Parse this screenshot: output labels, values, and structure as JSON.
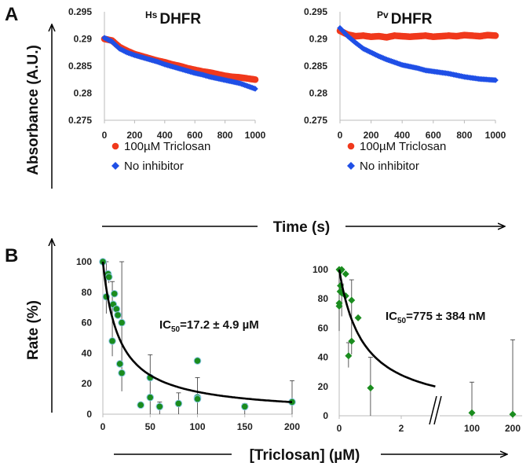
{
  "panel_labels": {
    "a": "A",
    "b": "B"
  },
  "axis_titles": {
    "absorbance": "Absorbance (A.U.)",
    "time": "Time (s)",
    "rate": "Rate (%)",
    "triclosan": "[Triclosan] (µM)"
  },
  "colors": {
    "triclosan": "#f0391c",
    "no_inhibitor": "#1f4fe6",
    "ic50_points": "#1a8c1e",
    "fit": "#000000"
  },
  "chart_data": [
    {
      "type": "scatter",
      "title": {
        "sup": "Hs",
        "main": "DHFR"
      },
      "xlabel": "Time (s)",
      "ylabel": "Absorbance (A.U.)",
      "xlim": [
        0,
        1000
      ],
      "ylim": [
        0.275,
        0.295
      ],
      "xticks": [
        "0",
        "200",
        "400",
        "600",
        "800",
        "1000"
      ],
      "yticks": [
        "0.275",
        "0.28",
        "0.285",
        "0.29",
        "0.295"
      ],
      "legend": [
        "100µM Triclosan",
        "No inhibitor"
      ],
      "legend_position": "bottom-left",
      "x": [
        0,
        50,
        100,
        150,
        200,
        250,
        300,
        350,
        400,
        450,
        500,
        550,
        600,
        650,
        700,
        750,
        800,
        850,
        900,
        950,
        1000
      ],
      "series": [
        {
          "name": "100µM Triclosan",
          "values": [
            0.29,
            0.2897,
            0.2885,
            0.2878,
            0.2872,
            0.2868,
            0.2864,
            0.286,
            0.2857,
            0.2853,
            0.285,
            0.2846,
            0.2843,
            0.284,
            0.2838,
            0.2835,
            0.2832,
            0.283,
            0.2829,
            0.2827,
            0.2825
          ]
        },
        {
          "name": "No inhibitor",
          "values": [
            0.2902,
            0.2895,
            0.2882,
            0.2875,
            0.287,
            0.2866,
            0.2862,
            0.2858,
            0.2853,
            0.2849,
            0.2845,
            0.2841,
            0.2837,
            0.2834,
            0.283,
            0.2827,
            0.2824,
            0.2821,
            0.2818,
            0.2813,
            0.2808
          ]
        }
      ]
    },
    {
      "type": "scatter",
      "title": {
        "sup": "Pv",
        "main": "DHFR"
      },
      "xlabel": "Time (s)",
      "ylabel": "Absorbance (A.U.)",
      "xlim": [
        0,
        1000
      ],
      "ylim": [
        0.275,
        0.295
      ],
      "xticks": [
        "0",
        "200",
        "400",
        "600",
        "800",
        "1000"
      ],
      "yticks": [
        "0.275",
        "0.28",
        "0.285",
        "0.29",
        "0.295"
      ],
      "legend": [
        "100µM Triclosan",
        "No inhibitor"
      ],
      "legend_position": "bottom-left",
      "x": [
        0,
        50,
        100,
        150,
        200,
        250,
        300,
        350,
        400,
        450,
        500,
        550,
        600,
        650,
        700,
        750,
        800,
        850,
        900,
        950,
        1000
      ],
      "series": [
        {
          "name": "100µM Triclosan",
          "values": [
            0.2915,
            0.2908,
            0.2905,
            0.2906,
            0.2904,
            0.2905,
            0.2903,
            0.2906,
            0.2905,
            0.2904,
            0.2905,
            0.2906,
            0.2904,
            0.2905,
            0.2906,
            0.2905,
            0.2907,
            0.2906,
            0.2905,
            0.2907,
            0.2906
          ]
        },
        {
          "name": "No inhibitor",
          "values": [
            0.292,
            0.2905,
            0.2893,
            0.2882,
            0.2875,
            0.2868,
            0.2862,
            0.2857,
            0.2852,
            0.2849,
            0.2846,
            0.2842,
            0.284,
            0.2838,
            0.2836,
            0.2833,
            0.283,
            0.2828,
            0.2826,
            0.2825,
            0.2824
          ]
        }
      ]
    },
    {
      "type": "scatter",
      "xlabel": "[Triclosan] (µM)",
      "ylabel": "Rate (%)",
      "xlim": [
        0,
        200
      ],
      "ylim": [
        0,
        100
      ],
      "xticks": [
        "0",
        "50",
        "100",
        "150",
        "200"
      ],
      "yticks": [
        "0",
        "20",
        "40",
        "60",
        "80",
        "100"
      ],
      "annotation": {
        "main": "IC",
        "sub": "50",
        "rest": "=17.2 ± 4.9 µM"
      },
      "fit": {
        "ic50": 17.2,
        "xmax": 200
      },
      "points": [
        [
          0,
          100
        ],
        [
          5.5,
          92
        ],
        [
          6.4,
          90
        ],
        [
          3.6,
          77
        ],
        [
          12.2,
          79
        ],
        [
          11,
          72
        ],
        [
          14.4,
          69
        ],
        [
          15.8,
          65
        ],
        [
          20,
          60
        ],
        [
          10,
          48
        ],
        [
          18,
          33
        ],
        [
          20,
          27
        ],
        [
          40,
          6
        ],
        [
          50,
          24
        ],
        [
          50,
          11
        ],
        [
          60,
          5
        ],
        [
          80,
          7
        ],
        [
          100,
          35
        ],
        [
          100,
          11
        ],
        [
          100,
          10
        ],
        [
          150,
          5
        ],
        [
          200,
          8
        ]
      ],
      "error_bars": [
        [
          3.6,
          66,
          100
        ],
        [
          6.4,
          86,
          92
        ],
        [
          10,
          38,
          87
        ],
        [
          20,
          15,
          100
        ],
        [
          50,
          0,
          39
        ],
        [
          60,
          0,
          8
        ],
        [
          80,
          0,
          14
        ],
        [
          100,
          0,
          24
        ],
        [
          150,
          0,
          7
        ],
        [
          200,
          0,
          22
        ]
      ]
    },
    {
      "type": "scatter",
      "xlabel": "[Triclosan] (µM)",
      "ylabel": "Rate (%)",
      "xlim": [
        0,
        200
      ],
      "ylim": [
        0,
        100
      ],
      "axis_break": true,
      "xticks": [
        "0",
        "2",
        "100",
        "200"
      ],
      "yticks": [
        "0",
        "20",
        "40",
        "60",
        "80",
        "100"
      ],
      "annotation": {
        "main": "IC",
        "sub": "50",
        "rest": "=775 ± 384 nM"
      },
      "fit": {
        "ic50": 0.775,
        "xmax": 3.1
      },
      "points": [
        [
          0,
          100
        ],
        [
          0.04,
          99
        ],
        [
          0.08,
          100
        ],
        [
          0.21,
          97
        ],
        [
          0.04,
          89
        ],
        [
          0.03,
          85
        ],
        [
          0.08,
          84
        ],
        [
          0.21,
          82
        ],
        [
          0.4,
          79
        ],
        [
          0.61,
          67
        ],
        [
          0.4,
          51
        ],
        [
          0.3,
          41
        ],
        [
          0,
          77
        ],
        [
          0,
          75
        ],
        [
          1.01,
          19
        ],
        [
          100,
          2
        ],
        [
          200,
          1
        ]
      ],
      "error_bars": [
        [
          0,
          58,
          100
        ],
        [
          0.08,
          68,
          90
        ],
        [
          0.3,
          33,
          50
        ],
        [
          0.4,
          42,
          93
        ],
        [
          1.01,
          0,
          40
        ],
        [
          100,
          0,
          23
        ],
        [
          200,
          0,
          52
        ]
      ]
    }
  ]
}
